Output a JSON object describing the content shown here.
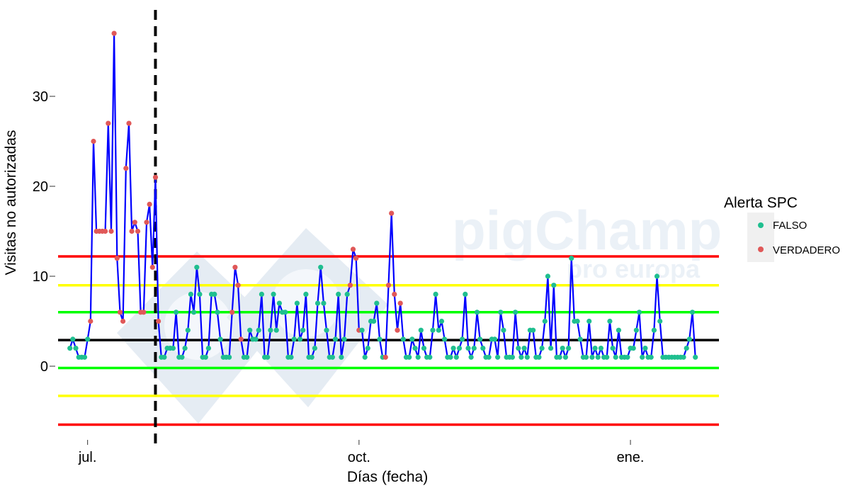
{
  "chart_data": {
    "type": "line",
    "xlabel": "Días (fecha)",
    "ylabel": "Visitas no autorizadas",
    "x_range": [
      "2019-06-21",
      "2020-01-31"
    ],
    "ylim": [
      -7,
      38
    ],
    "yticks": [
      0,
      10,
      20,
      30
    ],
    "y_tick_labels": [
      "0",
      "10",
      "20",
      "30"
    ],
    "xticks": [
      {
        "date": "2019-07-01",
        "label": "jul."
      },
      {
        "date": "2019-10-01",
        "label": "oct."
      },
      {
        "date": "2020-01-01",
        "label": "ene."
      }
    ],
    "grid": false,
    "legend": {
      "title": "Alerta SPC",
      "position": "right",
      "entries": [
        {
          "label": "FALSO",
          "color": "#1fbf8f"
        },
        {
          "label": "VERDADERO",
          "color": "#e05858"
        }
      ]
    },
    "line_color": "#0000ff",
    "vertical_line": {
      "date": "2019-07-24",
      "style": "dashed",
      "color": "#000000"
    },
    "control_lines": [
      {
        "y": 12.2,
        "color": "#ff0000"
      },
      {
        "y": 9.0,
        "color": "#ffff00"
      },
      {
        "y": 6.0,
        "color": "#00ff00"
      },
      {
        "y": 2.9,
        "color": "#000000"
      },
      {
        "y": -0.2,
        "color": "#00ff00"
      },
      {
        "y": -3.3,
        "color": "#ffff00"
      },
      {
        "y": -6.5,
        "color": "#ff0000"
      }
    ],
    "series": [
      {
        "values": [
          2,
          3,
          2,
          1,
          1,
          1,
          3,
          5,
          25,
          15,
          15,
          15,
          15,
          27,
          15,
          37,
          12,
          6,
          5,
          22,
          27,
          15,
          16,
          15,
          6,
          6,
          16,
          18,
          11,
          21,
          5,
          1,
          1,
          2,
          2,
          2,
          6,
          1,
          1,
          2,
          4,
          8,
          6,
          11,
          8,
          1,
          1,
          2,
          8,
          8,
          6,
          3,
          1,
          1,
          1,
          6,
          11,
          9,
          3,
          1,
          1,
          4,
          3,
          3,
          4,
          8,
          1,
          1,
          4,
          8,
          4,
          7,
          6,
          6,
          1,
          1,
          3,
          7,
          3,
          4,
          8,
          1,
          1,
          2,
          7,
          11,
          7,
          4,
          1,
          1,
          3,
          8,
          1,
          3,
          8,
          9,
          13,
          12,
          4,
          4,
          1,
          2,
          5,
          5,
          7,
          3,
          1,
          1,
          9,
          17,
          8,
          4,
          7,
          3,
          1,
          1,
          3,
          2,
          1,
          4,
          2,
          1,
          1,
          4,
          8,
          4,
          5,
          3,
          1,
          1,
          2,
          1,
          2,
          3,
          8,
          2,
          1,
          2,
          6,
          3,
          2,
          1,
          1,
          3,
          3,
          1,
          6,
          4,
          1,
          1,
          1,
          6,
          2,
          1,
          2,
          1,
          4,
          4,
          1,
          1,
          2,
          5,
          10,
          2,
          9,
          1,
          1,
          2,
          1,
          2,
          12,
          5,
          5,
          3,
          1,
          1,
          5,
          1,
          2,
          1,
          2,
          1,
          1,
          5,
          2,
          1,
          4,
          1,
          1,
          1,
          2,
          2,
          4,
          6,
          1,
          2,
          1,
          1,
          4,
          10,
          5,
          1,
          1,
          1,
          1,
          1,
          1,
          1,
          1,
          2,
          3,
          6,
          1
        ],
        "alert": [
          false,
          false,
          false,
          false,
          false,
          false,
          false,
          true,
          true,
          true,
          true,
          true,
          true,
          true,
          true,
          true,
          true,
          true,
          true,
          true,
          true,
          true,
          true,
          true,
          true,
          true,
          true,
          true,
          true,
          true,
          true,
          false,
          false,
          false,
          false,
          false,
          false,
          false,
          false,
          false,
          false,
          false,
          false,
          false,
          false,
          false,
          false,
          false,
          false,
          false,
          false,
          false,
          false,
          false,
          false,
          true,
          true,
          true,
          true,
          false,
          false,
          false,
          false,
          false,
          false,
          false,
          false,
          false,
          false,
          false,
          false,
          false,
          false,
          false,
          false,
          false,
          false,
          false,
          false,
          false,
          false,
          false,
          false,
          false,
          false,
          false,
          false,
          false,
          false,
          false,
          false,
          false,
          false,
          false,
          false,
          true,
          true,
          true,
          true,
          false,
          false,
          false,
          false,
          false,
          false,
          false,
          false,
          true,
          true,
          true,
          true,
          true,
          true,
          false,
          false,
          false,
          false,
          false,
          false,
          false,
          false,
          false,
          false,
          false,
          false,
          false,
          false,
          false,
          false,
          false,
          false,
          false,
          false,
          false,
          false,
          false,
          false,
          false,
          false,
          false,
          false,
          false,
          false,
          false,
          false,
          false,
          false,
          false,
          false,
          false,
          false,
          false,
          false,
          false,
          false,
          false,
          false,
          false,
          false,
          false,
          false,
          false,
          false,
          false,
          false,
          false,
          false,
          false,
          false,
          false,
          false,
          false,
          false,
          false,
          false,
          false,
          false,
          false,
          false,
          false,
          false,
          false,
          false,
          false,
          false,
          false,
          false,
          false,
          false,
          false,
          false,
          false,
          false,
          false,
          false,
          false,
          false,
          false,
          false,
          false,
          false,
          false,
          false,
          false,
          false,
          false,
          false,
          false,
          false,
          false,
          false,
          false,
          false,
          false,
          false,
          false,
          false
        ]
      }
    ]
  },
  "watermark": {
    "brand": "pigChamp",
    "subtitle": "pro europa"
  }
}
